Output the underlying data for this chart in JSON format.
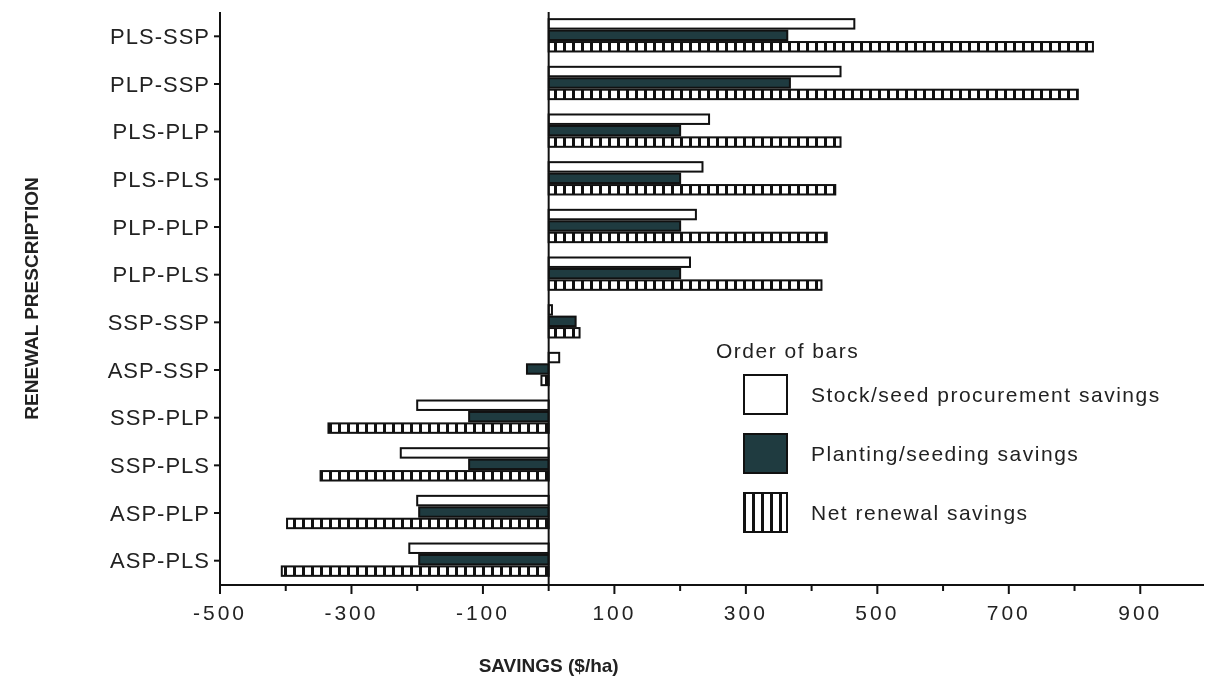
{
  "chart_data": {
    "type": "bar",
    "orientation": "horizontal",
    "xlabel": "SAVINGS ($/ha)",
    "ylabel": "RENEWAL PRESCRIPTION",
    "legend_title": "Order of bars",
    "legend": "bottom right",
    "grid": false,
    "categories": [
      "PLS-SSP",
      "PLP-SSP",
      "PLS-PLP",
      "PLS-PLS",
      "PLP-PLP",
      "PLP-PLS",
      "SSP-SSP",
      "ASP-SSP",
      "SSP-PLP",
      "SSP-PLS",
      "ASP-PLP",
      "ASP-PLS"
    ],
    "xlim": [
      -500,
      1000
    ],
    "ref_lines": [
      {
        "axis": "x",
        "value": 0,
        "color": "#111111"
      }
    ],
    "xticks": [
      -500,
      {
        "value": -400,
        "label": null
      },
      -300,
      {
        "value": -200,
        "label": null
      },
      -100,
      {
        "value": 0,
        "label": null
      },
      100,
      {
        "value": 200,
        "label": null
      },
      300,
      {
        "value": 400,
        "label": null
      },
      500,
      {
        "value": 600,
        "label": null
      },
      700,
      {
        "value": 800,
        "label": null
      },
      900,
      {
        "value": 1000,
        "label": null
      }
    ],
    "series": [
      {
        "name": "Stock/seed procurement savings",
        "color": "#ffffff",
        "values": [
          465,
          444,
          244,
          234,
          224,
          215,
          5,
          16,
          -200,
          -225,
          -200,
          -212
        ]
      },
      {
        "name": "Planting/seeding savings",
        "color": "#1f3b40",
        "values": [
          363,
          367,
          200,
          200,
          200,
          200,
          41,
          -33,
          -121,
          -121,
          -197,
          -197
        ]
      },
      {
        "name": "Net renewal savings",
        "color": "#111111",
        "values": [
          828,
          805,
          444,
          436,
          423,
          415,
          47,
          -11,
          -335,
          -347,
          -398,
          -406
        ]
      }
    ]
  }
}
